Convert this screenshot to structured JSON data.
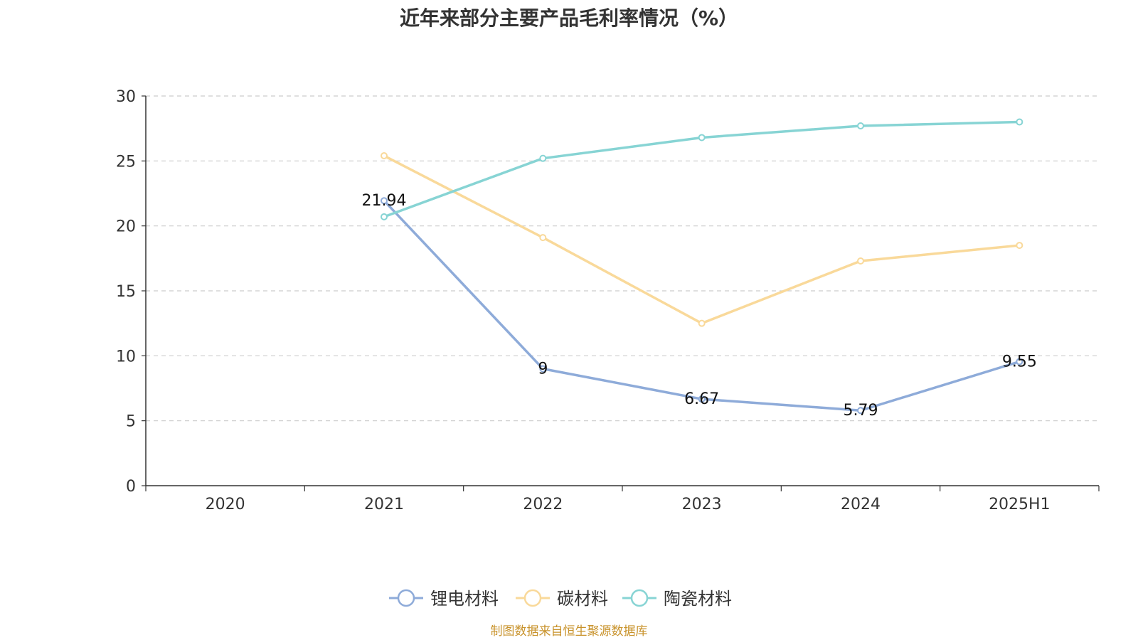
{
  "chart_data": {
    "type": "line",
    "title": "近年来部分主要产品毛利率情况（%）",
    "categories": [
      "2020",
      "2021",
      "2022",
      "2023",
      "2024",
      "2025H1"
    ],
    "ylim": [
      0,
      30
    ],
    "yticks": [
      0,
      5,
      10,
      15,
      20,
      25,
      30
    ],
    "grid": "horizontal dashed",
    "legend_position": "bottom-center",
    "series": [
      {
        "name": "锂电材料",
        "color": "#8eabd9",
        "values": [
          null,
          21.94,
          9,
          6.67,
          5.79,
          9.55
        ],
        "show_labels": true
      },
      {
        "name": "碳材料",
        "color": "#f9d99a",
        "values": [
          null,
          25.4,
          19.1,
          12.5,
          17.3,
          18.5
        ],
        "show_labels": false
      },
      {
        "name": "陶瓷材料",
        "color": "#87d4d4",
        "values": [
          null,
          20.7,
          25.2,
          26.8,
          27.7,
          28.0
        ],
        "show_labels": false
      }
    ]
  },
  "source": "制图数据来自恒生聚源数据库"
}
